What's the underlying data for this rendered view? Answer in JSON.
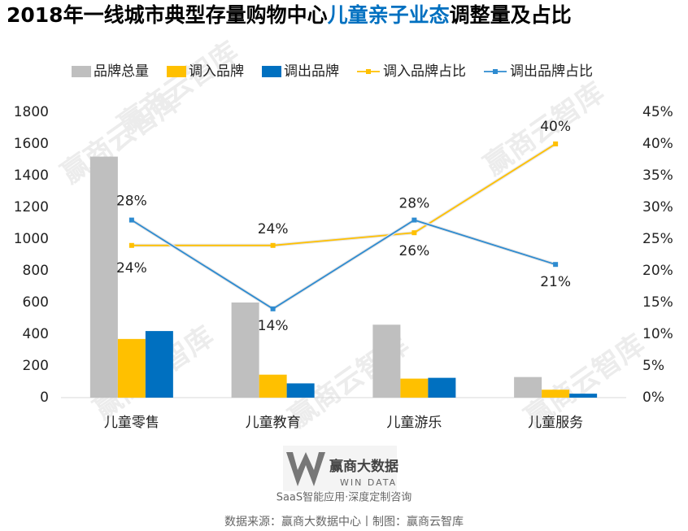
{
  "chart_data": {
    "type": "bar",
    "title": [
      "2018年一线城市典型存量购物中心",
      "儿童亲子业态",
      "调整量及占比"
    ],
    "title_colors": [
      "#000000",
      "#0070c0",
      "#000000"
    ],
    "categories": [
      "儿童零售",
      "儿童教育",
      "儿童游乐",
      "儿童服务"
    ],
    "series": [
      {
        "name": "品牌总量",
        "color": "#bfbfbf",
        "values": [
          1520,
          600,
          460,
          130
        ]
      },
      {
        "name": "调入品牌",
        "color": "#ffc000",
        "values": [
          370,
          145,
          120,
          50
        ]
      },
      {
        "name": "调出品牌",
        "color": "#0070c0",
        "values": [
          420,
          90,
          125,
          25
        ]
      },
      {
        "name": "调入品牌占比",
        "color": "#ffc000",
        "type": "line",
        "axis": "y2",
        "values": [
          24,
          24,
          26,
          40
        ],
        "value_labels": [
          "24%",
          "24%",
          "26%",
          "40%"
        ]
      },
      {
        "name": "调出品牌占比",
        "color": "#2e8bd0",
        "type": "line",
        "axis": "y2",
        "values": [
          28,
          14,
          28,
          21
        ],
        "value_labels": [
          "28%",
          "14%",
          "28%",
          "21%"
        ]
      }
    ],
    "ylim": [
      0,
      1800
    ],
    "yticks": [
      0,
      200,
      400,
      600,
      800,
      1000,
      1200,
      1400,
      1600,
      1800
    ],
    "y2lim": [
      0,
      45
    ],
    "y2ticks": [
      {
        "value": 0,
        "label": "0%"
      },
      {
        "value": 5,
        "label": "5%"
      },
      {
        "value": 10,
        "label": "10%"
      },
      {
        "value": 15,
        "label": "15%"
      },
      {
        "value": 20,
        "label": "20%"
      },
      {
        "value": 25,
        "label": "25%"
      },
      {
        "value": 30,
        "label": "30%"
      },
      {
        "value": 35,
        "label": "35%"
      },
      {
        "value": 40,
        "label": "40%"
      },
      {
        "value": 45,
        "label": "45%"
      }
    ],
    "grid": false,
    "legend": "top",
    "watermark": "赢商云智库",
    "logo_name": "赢商大数据",
    "logo_sub": "WIN DATA",
    "slogan": "SaaS智能应用·深度定制咨询",
    "source": "数据来源：赢商大数据中心丨制图：赢商云智库"
  }
}
